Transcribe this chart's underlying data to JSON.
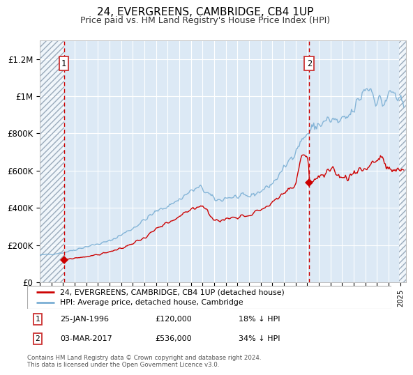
{
  "title": "24, EVERGREENS, CAMBRIDGE, CB4 1UP",
  "subtitle": "Price paid vs. HM Land Registry's House Price Index (HPI)",
  "ylim": [
    0,
    1300000
  ],
  "xlim_start": 1994.0,
  "xlim_end": 2025.5,
  "yticks": [
    0,
    200000,
    400000,
    600000,
    800000,
    1000000,
    1200000
  ],
  "ytick_labels": [
    "£0",
    "£200K",
    "£400K",
    "£600K",
    "£800K",
    "£1M",
    "£1.2M"
  ],
  "sale1_date": 1996.07,
  "sale1_price": 120000,
  "sale1_label": "1",
  "sale2_date": 2017.17,
  "sale2_price": 536000,
  "sale2_label": "2",
  "hpi_color": "#7bafd4",
  "property_color": "#cc0000",
  "dashed_line_color": "#cc0000",
  "legend1_label": "24, EVERGREENS, CAMBRIDGE, CB4 1UP (detached house)",
  "legend2_label": "HPI: Average price, detached house, Cambridge",
  "note1_label": "1",
  "note1_date": "25-JAN-1996",
  "note1_price": "£120,000",
  "note1_hpi": "18% ↓ HPI",
  "note2_label": "2",
  "note2_date": "03-MAR-2017",
  "note2_price": "£536,000",
  "note2_hpi": "34% ↓ HPI",
  "footer": "Contains HM Land Registry data © Crown copyright and database right 2024.\nThis data is licensed under the Open Government Licence v3.0.",
  "background_color": "#dce9f5",
  "title_fontsize": 11,
  "subtitle_fontsize": 9
}
